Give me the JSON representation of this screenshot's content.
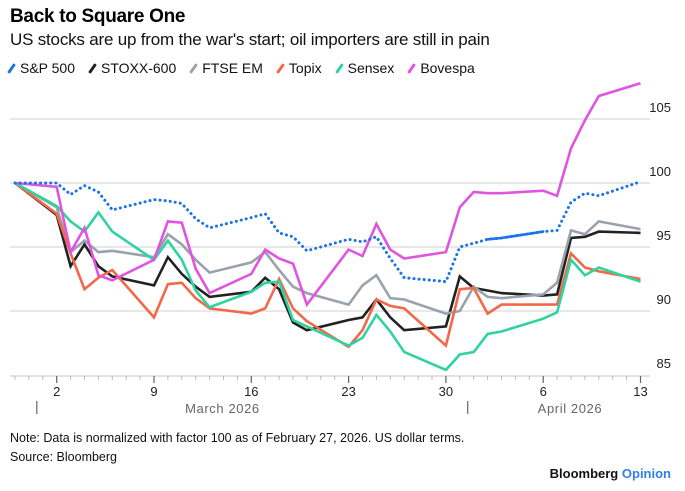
{
  "header": {
    "title": "Back to Square One",
    "subtitle": "US stocks are up from the war's start; oil importers are still in pain"
  },
  "footer": {
    "note": "Note: Data is normalized with factor 100 as of February 27, 2026. US dollar terms.",
    "source": "Source: Bloomberg",
    "brand_main": "Bloomberg",
    "brand_accent": "Opinion"
  },
  "chart_data": {
    "type": "line",
    "title": "Back to Square One",
    "subtitle": "US stocks are up from the war's start; oil importers are still in pain",
    "xlabel": "",
    "ylabel": "",
    "ylim": [
      85,
      108
    ],
    "grid": true,
    "legend_position": "top-left",
    "y_ticks": [
      85,
      90,
      95,
      100,
      105
    ],
    "x_ticks": [
      {
        "label": "2",
        "day": 3
      },
      {
        "label": "9",
        "day": 10
      },
      {
        "label": "16",
        "day": 17
      },
      {
        "label": "23",
        "day": 24
      },
      {
        "label": "30",
        "day": 31
      },
      {
        "label": "6",
        "day": 38
      },
      {
        "label": "13",
        "day": 45
      }
    ],
    "month_labels": [
      {
        "label": "March 2026",
        "day": 15.5
      },
      {
        "label": "April 2026",
        "day": 40.5
      }
    ],
    "month_dividers": [
      2,
      33
    ],
    "x_dates": [
      "Feb 27",
      "Mar 2",
      "Mar 3",
      "Mar 4",
      "Mar 5",
      "Mar 6",
      "Mar 9",
      "Mar 10",
      "Mar 11",
      "Mar 12",
      "Mar 13",
      "Mar 16",
      "Mar 17",
      "Mar 18",
      "Mar 19",
      "Mar 20",
      "Mar 23",
      "Mar 24",
      "Mar 25",
      "Mar 26",
      "Mar 27",
      "Mar 30",
      "Mar 31",
      "Apr 1",
      "Apr 2",
      "Apr 3",
      "Apr 6",
      "Apr 7",
      "Apr 8",
      "Apr 9",
      "Apr 10",
      "Apr 13"
    ],
    "x_days": [
      0,
      3,
      4,
      5,
      6,
      7,
      10,
      11,
      12,
      13,
      14,
      17,
      18,
      19,
      20,
      21,
      24,
      25,
      26,
      27,
      28,
      31,
      32,
      33,
      34,
      35,
      38,
      39,
      40,
      41,
      42,
      45
    ],
    "series": [
      {
        "name": "S&P 500",
        "color": "#1a73e8",
        "style": "dotted",
        "solid_segment_days": [
          34,
          38
        ],
        "values": [
          100.0,
          100.0,
          99.1,
          99.8,
          99.3,
          97.9,
          98.7,
          98.6,
          98.4,
          97.2,
          96.5,
          97.3,
          97.6,
          96.1,
          95.8,
          94.7,
          95.6,
          95.4,
          95.8,
          94.1,
          92.6,
          92.3,
          95.0,
          95.3,
          95.6,
          95.7,
          96.2,
          96.3,
          98.5,
          99.2,
          99.0,
          100.1
        ]
      },
      {
        "name": "STOXX-600",
        "color": "#222222",
        "style": "solid",
        "values": [
          100.0,
          97.5,
          93.5,
          95.2,
          93.5,
          92.7,
          92.0,
          94.2,
          92.9,
          91.9,
          91.1,
          91.5,
          92.6,
          91.7,
          89.1,
          88.5,
          89.3,
          89.5,
          90.9,
          89.5,
          88.5,
          88.8,
          92.7,
          91.8,
          91.6,
          91.4,
          91.2,
          91.3,
          95.7,
          95.8,
          96.2,
          96.1
        ]
      },
      {
        "name": "FTSE EM",
        "color": "#9aa3ad",
        "style": "solid",
        "values": [
          100.0,
          98.1,
          94.6,
          95.5,
          94.6,
          94.7,
          94.2,
          96.0,
          95.2,
          94.0,
          93.0,
          93.8,
          94.6,
          93.2,
          91.9,
          91.4,
          90.5,
          92.0,
          92.8,
          91.0,
          90.9,
          89.8,
          90.0,
          91.9,
          91.1,
          91.0,
          91.3,
          92.2,
          96.3,
          96.0,
          97.0,
          96.4
        ]
      },
      {
        "name": "Topix",
        "color": "#f26849",
        "style": "solid",
        "values": [
          100.0,
          97.6,
          94.5,
          91.7,
          92.6,
          93.2,
          89.5,
          92.1,
          92.2,
          91.0,
          90.2,
          89.8,
          90.2,
          92.5,
          90.2,
          89.2,
          87.2,
          88.5,
          90.9,
          90.4,
          90.2,
          87.3,
          91.7,
          91.8,
          89.8,
          90.5,
          90.5,
          90.5,
          94.5,
          93.4,
          93.1,
          92.5
        ]
      },
      {
        "name": "Sensex",
        "color": "#2ed3a0",
        "style": "solid",
        "values": [
          100.0,
          98.2,
          97.0,
          96.2,
          97.7,
          96.2,
          94.0,
          95.5,
          94.0,
          91.6,
          90.3,
          91.5,
          92.2,
          92.3,
          89.3,
          88.8,
          87.3,
          87.9,
          89.7,
          88.4,
          86.8,
          85.4,
          86.6,
          86.8,
          88.2,
          88.4,
          89.4,
          89.9,
          94.0,
          92.8,
          93.4,
          92.3
        ]
      },
      {
        "name": "Bovespa",
        "color": "#e055e0",
        "style": "solid",
        "values": [
          100.0,
          99.7,
          94.6,
          96.5,
          92.8,
          92.4,
          94.0,
          97.0,
          96.9,
          93.3,
          91.4,
          92.9,
          94.8,
          94.1,
          93.7,
          90.5,
          94.8,
          94.3,
          96.8,
          94.8,
          94.1,
          94.6,
          98.1,
          99.3,
          99.2,
          99.2,
          99.4,
          99.0,
          102.7,
          104.9,
          106.8,
          107.8
        ]
      }
    ]
  }
}
